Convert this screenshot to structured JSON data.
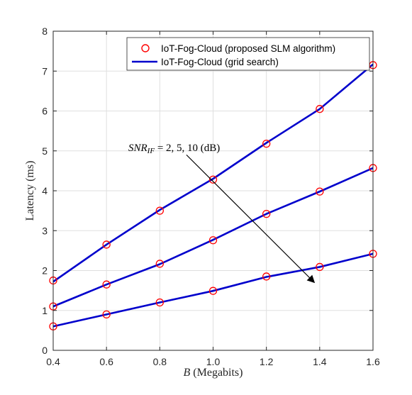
{
  "chart_data": {
    "type": "line",
    "xlabel": {
      "var": "B",
      "rest": " (Megabits)"
    },
    "ylabel": "Latency (ms)",
    "xlim": [
      0.4,
      1.6
    ],
    "ylim": [
      0,
      8
    ],
    "xticks": [
      "0.4",
      "0.6",
      "0.8",
      "1.0",
      "1.2",
      "1.4",
      "1.6"
    ],
    "yticks": [
      "0",
      "1",
      "2",
      "3",
      "4",
      "5",
      "6",
      "7",
      "8"
    ],
    "grid": true,
    "legend_position": "top-right",
    "x": [
      0.4,
      0.6,
      0.8,
      1.0,
      1.2,
      1.4,
      1.6
    ],
    "series": [
      {
        "name": "IoT-Fog-Cloud (proposed SLM algorithm)",
        "marker": "circle",
        "color": "#ff0000",
        "groups": [
          [
            1.75,
            2.65,
            3.5,
            4.28,
            5.18,
            6.05,
            7.15
          ],
          [
            1.1,
            1.65,
            2.17,
            2.76,
            3.42,
            3.98,
            4.57
          ],
          [
            0.6,
            0.9,
            1.2,
            1.49,
            1.85,
            2.09,
            2.42
          ]
        ]
      },
      {
        "name": "IoT-Fog-Cloud (grid search)",
        "marker": "line",
        "color": "#0000cc",
        "groups": [
          [
            1.72,
            2.65,
            3.52,
            4.3,
            5.2,
            6.05,
            7.17
          ],
          [
            1.1,
            1.65,
            2.16,
            2.77,
            3.42,
            3.98,
            4.57
          ],
          [
            0.6,
            0.9,
            1.2,
            1.49,
            1.84,
            2.09,
            2.42
          ]
        ]
      }
    ],
    "annotation": {
      "snr_base": "SNR",
      "snr_sub": "IF",
      "rest": " = 2, 5, 10 (dB)",
      "arrow_from": [
        0.9,
        4.9
      ],
      "arrow_to": [
        1.38,
        1.7
      ]
    }
  }
}
